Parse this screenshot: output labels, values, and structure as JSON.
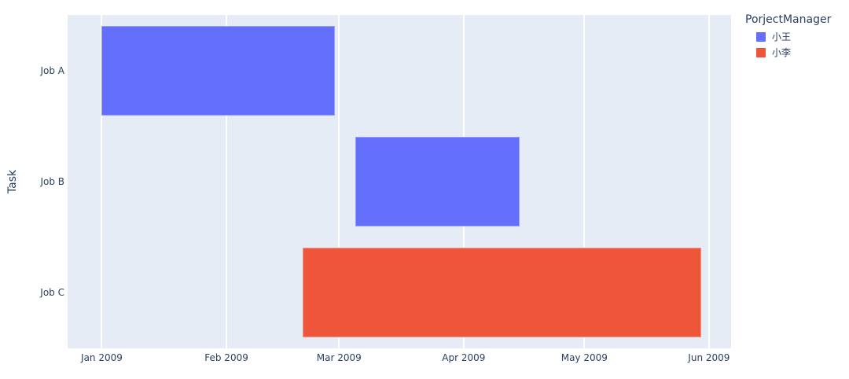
{
  "chart_data": {
    "type": "gantt",
    "title": "",
    "ylabel": "Task",
    "legend_title": "PorjectManager",
    "legend_position": "top-right",
    "grid": "vertical-only",
    "plot_bg": "#E5ECF6",
    "grid_color": "#FFFFFF",
    "font_color": "#2a3f5f",
    "x_range": [
      "2008-12-23T12:00:00Z",
      "2009-06-06T12:00:00Z"
    ],
    "categories": [
      "Job A",
      "Job B",
      "Job C"
    ],
    "tasks": [
      {
        "task": "Job A",
        "start": "2009-01-01",
        "finish": "2009-02-28",
        "manager": "小王"
      },
      {
        "task": "Job B",
        "start": "2009-03-05",
        "finish": "2009-04-15",
        "manager": "小王"
      },
      {
        "task": "Job C",
        "start": "2009-02-20",
        "finish": "2009-05-30",
        "manager": "小李"
      }
    ],
    "managers": [
      {
        "name": "小王",
        "color": "#636EFA"
      },
      {
        "name": "小李",
        "color": "#EF553B"
      }
    ],
    "x_ticks": [
      {
        "label": "Jan 2009",
        "date": "2009-01-01"
      },
      {
        "label": "Feb 2009",
        "date": "2009-02-01"
      },
      {
        "label": "Mar 2009",
        "date": "2009-03-01"
      },
      {
        "label": "Apr 2009",
        "date": "2009-04-01"
      },
      {
        "label": "May 2009",
        "date": "2009-05-01"
      },
      {
        "label": "Jun 2009",
        "date": "2009-06-01"
      }
    ]
  }
}
